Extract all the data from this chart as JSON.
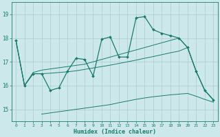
{
  "xlabel": "Humidex (Indice chaleur)",
  "bg_color": "#cce8ea",
  "grid_color": "#aacccc",
  "line_color": "#1a7a6e",
  "xlim": [
    -0.5,
    23.5
  ],
  "ylim": [
    14.5,
    19.5
  ],
  "xticks": [
    0,
    1,
    2,
    3,
    4,
    5,
    6,
    7,
    8,
    9,
    10,
    11,
    12,
    13,
    14,
    15,
    16,
    17,
    18,
    19,
    20,
    21,
    22,
    23
  ],
  "yticks": [
    15,
    16,
    17,
    18,
    19
  ],
  "line1_x": [
    0,
    1,
    2,
    3,
    4,
    5,
    6,
    7,
    8,
    9,
    10,
    11,
    12,
    13,
    14,
    15,
    16,
    17,
    18,
    19,
    20,
    21,
    22,
    23
  ],
  "line1_y": [
    17.9,
    16.0,
    16.5,
    16.5,
    15.8,
    15.9,
    16.6,
    17.15,
    17.1,
    16.4,
    17.95,
    18.05,
    17.2,
    17.2,
    18.85,
    18.9,
    18.35,
    18.2,
    18.1,
    18.0,
    17.6,
    16.6,
    15.8,
    15.4
  ],
  "line2_x": [
    0,
    1,
    2,
    3,
    4,
    5,
    6,
    7,
    8,
    9,
    10,
    11,
    12,
    13,
    14,
    15,
    16,
    17,
    18,
    19,
    20,
    21,
    22,
    23
  ],
  "line2_y": [
    17.9,
    16.0,
    16.55,
    16.65,
    16.7,
    16.75,
    16.8,
    16.85,
    16.9,
    17.0,
    17.1,
    17.2,
    17.3,
    17.4,
    17.5,
    17.6,
    17.7,
    17.8,
    17.9,
    18.0,
    17.6,
    16.6,
    15.8,
    15.4
  ],
  "line3_x": [
    0,
    1,
    2,
    3,
    4,
    5,
    6,
    7,
    8,
    9,
    10,
    11,
    12,
    13,
    14,
    15,
    16,
    17,
    18,
    19,
    20,
    21,
    22,
    23
  ],
  "line3_y": [
    17.9,
    16.0,
    16.5,
    16.5,
    16.52,
    16.55,
    16.58,
    16.62,
    16.68,
    16.74,
    16.8,
    16.86,
    16.93,
    17.0,
    17.07,
    17.15,
    17.22,
    17.3,
    17.38,
    17.45,
    17.6,
    16.6,
    15.8,
    15.4
  ],
  "line4_x": [
    3,
    4,
    5,
    6,
    7,
    8,
    9,
    10,
    11,
    12,
    13,
    14,
    15,
    16,
    17,
    18,
    19,
    20,
    21,
    22,
    23
  ],
  "line4_y": [
    14.8,
    14.85,
    14.9,
    14.95,
    15.0,
    15.05,
    15.1,
    15.15,
    15.2,
    15.28,
    15.35,
    15.42,
    15.48,
    15.53,
    15.57,
    15.61,
    15.64,
    15.67,
    15.55,
    15.42,
    15.3
  ]
}
